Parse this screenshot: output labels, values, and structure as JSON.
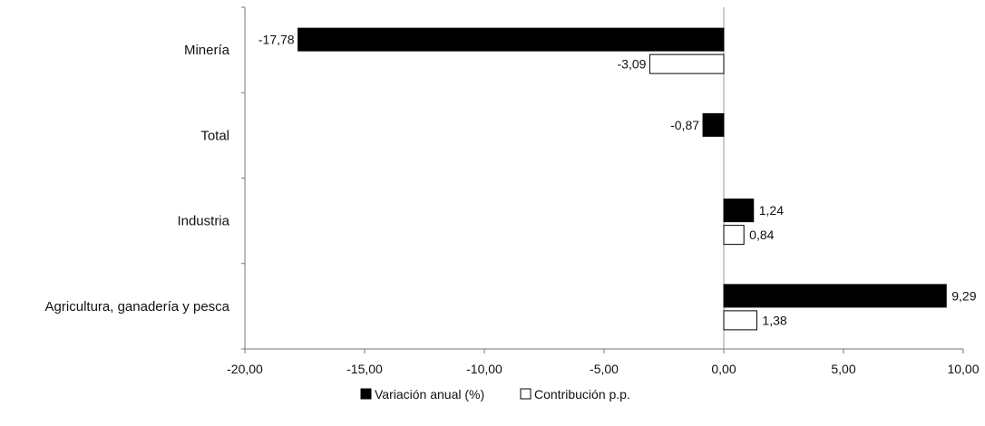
{
  "chart_data": {
    "type": "bar",
    "orientation": "horizontal",
    "categories": [
      "Minería",
      "Total",
      "Industria",
      "Agricultura, ganadería y pesca"
    ],
    "series": [
      {
        "name": "Variación anual (%)",
        "color": "#000000",
        "values": [
          -17.78,
          -0.87,
          1.24,
          9.29
        ],
        "labels": [
          "-17,78",
          "-0,87",
          "1,24",
          "9,29"
        ]
      },
      {
        "name": "Contribución p.p.",
        "color": "#ffffff",
        "values": [
          -3.09,
          null,
          0.84,
          1.38
        ],
        "labels": [
          "-3,09",
          "",
          "0,84",
          "1,38"
        ]
      }
    ],
    "xlim": [
      -20,
      10
    ],
    "xticks": [
      -20,
      -15,
      -10,
      -5,
      0,
      5,
      10
    ],
    "xtick_labels": [
      "-20,00",
      "-15,00",
      "-10,00",
      "-5,00",
      "0,00",
      "5,00",
      "10,00"
    ],
    "grid": false,
    "legend_position": "bottom",
    "legend_labels": [
      "Variación anual (%)",
      "Contribución p.p."
    ]
  }
}
